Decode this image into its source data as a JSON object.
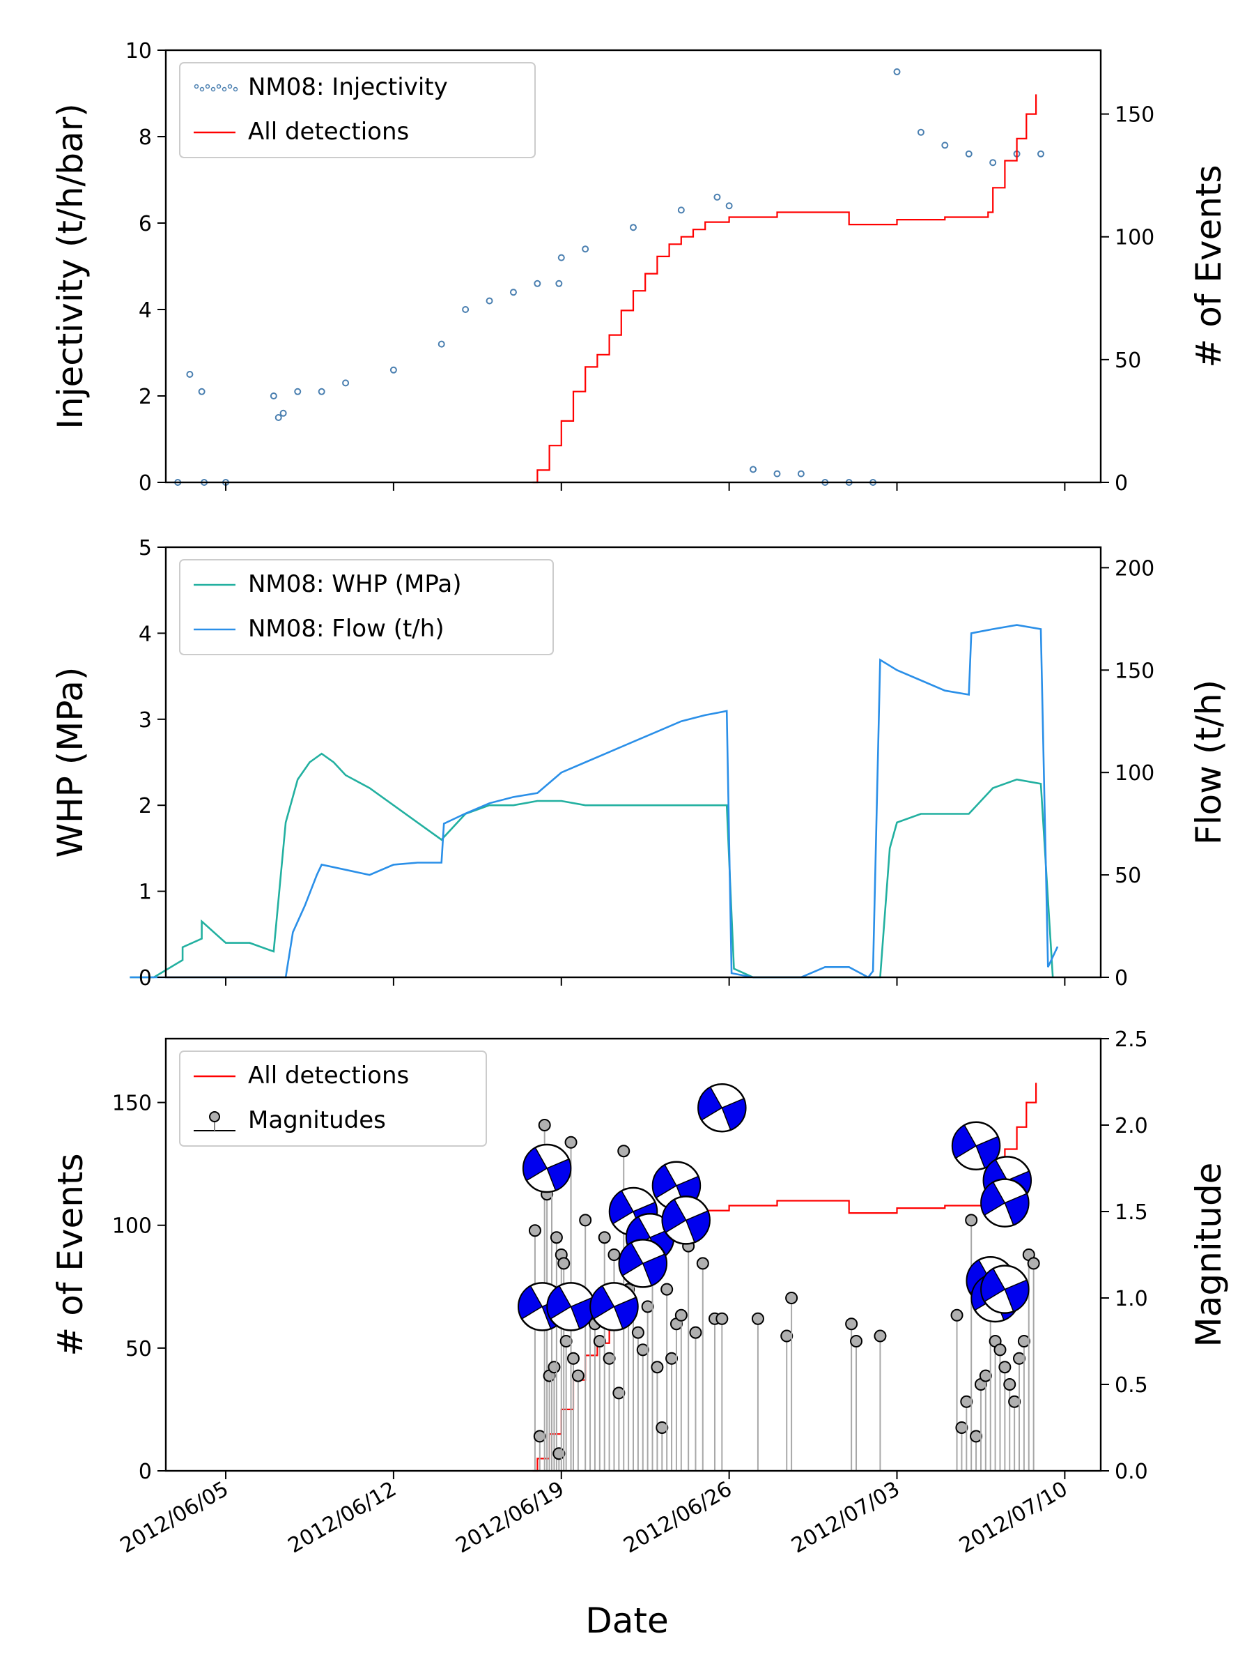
{
  "figure": {
    "xlabel": "Date",
    "x_ticks": [
      "2012/06/05",
      "2012/06/12",
      "2012/06/19",
      "2012/06/26",
      "2012/07/03",
      "2012/07/10"
    ]
  },
  "chart_data": [
    {
      "type": "scatter",
      "panel": "top",
      "ylabel_left": "Injectivity (t/h/bar)",
      "ylabel_right": "# of Events",
      "ylim_left": [
        0,
        10
      ],
      "ylim_right": [
        0,
        176
      ],
      "y_ticks_left": [
        "0",
        "2",
        "4",
        "6",
        "8",
        "10"
      ],
      "y_ticks_right": [
        "0",
        "50",
        "100",
        "150"
      ],
      "legend": {
        "placement": "top-left",
        "entries": [
          "NM08: Injectivity",
          "All detections"
        ]
      },
      "colors": {
        "injectivity": "#4a7fb0",
        "detections": "#ff0000"
      },
      "series": [
        {
          "name": "NM08: Injectivity",
          "axis": "left",
          "marker": "small dots",
          "x": [
            "2012/06/03",
            "2012/06/03.5",
            "2012/06/04",
            "2012/06/04.1",
            "2012/06/05",
            "2012/06/07",
            "2012/06/07.2",
            "2012/06/07.4",
            "2012/06/08",
            "2012/06/09",
            "2012/06/10",
            "2012/06/12",
            "2012/06/14",
            "2012/06/15",
            "2012/06/16",
            "2012/06/17",
            "2012/06/18",
            "2012/06/18.9",
            "2012/06/19",
            "2012/06/20",
            "2012/06/22",
            "2012/06/24",
            "2012/06/25.5",
            "2012/06/26",
            "2012/06/27",
            "2012/06/28",
            "2012/06/29",
            "2012/06/30",
            "2012/07/01",
            "2012/07/02",
            "2012/07/03",
            "2012/07/04",
            "2012/07/05",
            "2012/07/06",
            "2012/07/07",
            "2012/07/08",
            "2012/07/09"
          ],
          "y": [
            0,
            2.5,
            2.1,
            0,
            0,
            2.0,
            1.5,
            1.6,
            2.1,
            2.1,
            2.3,
            2.6,
            3.2,
            4.0,
            4.2,
            4.4,
            4.6,
            4.6,
            5.2,
            5.4,
            5.9,
            6.3,
            6.6,
            6.4,
            0.3,
            0.2,
            0.2,
            0,
            0,
            0,
            9.5,
            8.1,
            7.8,
            7.6,
            7.4,
            7.6,
            7.6
          ]
        },
        {
          "name": "All detections",
          "axis": "right",
          "marker": "step line",
          "x": [
            "2012/06/17.8",
            "2012/06/18",
            "2012/06/18.5",
            "2012/06/19",
            "2012/06/19.5",
            "2012/06/20",
            "2012/06/20.5",
            "2012/06/21",
            "2012/06/21.5",
            "2012/06/22",
            "2012/06/22.5",
            "2012/06/23",
            "2012/06/23.5",
            "2012/06/24",
            "2012/06/24.5",
            "2012/06/25",
            "2012/06/26",
            "2012/06/27",
            "2012/06/28",
            "2012/06/29",
            "2012/07/01",
            "2012/07/03",
            "2012/07/05",
            "2012/07/06.8",
            "2012/07/07",
            "2012/07/07.5",
            "2012/07/08",
            "2012/07/08.4",
            "2012/07/08.8"
          ],
          "y": [
            0,
            5,
            15,
            25,
            37,
            47,
            52,
            60,
            70,
            78,
            85,
            92,
            97,
            100,
            103,
            106,
            108,
            108,
            110,
            110,
            105,
            107,
            108,
            110,
            120,
            131,
            140,
            150,
            158
          ]
        }
      ]
    },
    {
      "type": "line",
      "panel": "middle",
      "ylabel_left": "WHP (MPa)",
      "ylabel_right": "Flow (t/h)",
      "ylim_left": [
        0,
        5
      ],
      "ylim_right": [
        0,
        210
      ],
      "y_ticks_left": [
        "0",
        "1",
        "2",
        "3",
        "4",
        "5"
      ],
      "y_ticks_right": [
        "0",
        "50",
        "100",
        "150",
        "200"
      ],
      "legend": {
        "placement": "top-left",
        "entries": [
          "NM08: WHP (MPa)",
          "NM08: Flow (t/h)"
        ]
      },
      "colors": {
        "whp": "#22b0a0",
        "flow": "#2a8fe8"
      },
      "series": [
        {
          "name": "NM08: WHP (MPa)",
          "axis": "left",
          "x": [
            "2012/06/01",
            "2012/06/02",
            "2012/06/03.2",
            "2012/06/03.2",
            "2012/06/04",
            "2012/06/04",
            "2012/06/05",
            "2012/06/05",
            "2012/06/06",
            "2012/06/07",
            "2012/06/07.5",
            "2012/06/08",
            "2012/06/08.5",
            "2012/06/09",
            "2012/06/09.5",
            "2012/06/10",
            "2012/06/11",
            "2012/06/12",
            "2012/06/13",
            "2012/06/14",
            "2012/06/15",
            "2012/06/16",
            "2012/06/17",
            "2012/06/18",
            "2012/06/19",
            "2012/06/20",
            "2012/06/21",
            "2012/06/22",
            "2012/06/23",
            "2012/06/24",
            "2012/06/25",
            "2012/06/25.9",
            "2012/06/26.2",
            "2012/06/27",
            "2012/06/30",
            "2012/07/02.3",
            "2012/07/02.7",
            "2012/07/03",
            "2012/07/04",
            "2012/07/05",
            "2012/07/06",
            "2012/07/07",
            "2012/07/08",
            "2012/07/09",
            "2012/07/09.5"
          ],
          "y": [
            0,
            0,
            0.2,
            0.35,
            0.45,
            0.65,
            0.4,
            0.4,
            0.4,
            0.3,
            1.8,
            2.3,
            2.5,
            2.6,
            2.5,
            2.35,
            2.2,
            2.0,
            1.8,
            1.6,
            1.9,
            2.0,
            2.0,
            2.05,
            2.05,
            2.0,
            2.0,
            2.0,
            2.0,
            2.0,
            2.0,
            2.0,
            0.1,
            0,
            0,
            0,
            1.5,
            1.8,
            1.9,
            1.9,
            1.9,
            2.2,
            2.3,
            2.25,
            0
          ]
        },
        {
          "name": "NM08: Flow (t/h)",
          "axis": "right",
          "x": [
            "2012/06/01",
            "2012/06/07.5",
            "2012/06/07.8",
            "2012/06/08.3",
            "2012/06/08.8",
            "2012/06/09",
            "2012/06/11",
            "2012/06/12",
            "2012/06/13",
            "2012/06/14",
            "2012/06/14.1",
            "2012/06/15",
            "2012/06/16",
            "2012/06/17",
            "2012/06/18",
            "2012/06/19",
            "2012/06/20",
            "2012/06/21",
            "2012/06/22",
            "2012/06/23",
            "2012/06/24",
            "2012/06/25",
            "2012/06/25.9",
            "2012/06/26.1",
            "2012/06/27",
            "2012/06/28",
            "2012/06/29",
            "2012/06/30",
            "2012/07/01",
            "2012/07/01.8",
            "2012/07/02",
            "2012/07/02.3",
            "2012/07/03",
            "2012/07/04",
            "2012/07/05",
            "2012/07/06",
            "2012/07/06.1",
            "2012/07/07",
            "2012/07/08",
            "2012/07/09",
            "2012/07/09.3",
            "2012/07/09.7"
          ],
          "y": [
            0,
            0,
            22,
            35,
            50,
            55,
            50,
            55,
            56,
            56,
            75,
            80,
            85,
            88,
            90,
            100,
            105,
            110,
            115,
            120,
            125,
            128,
            130,
            2,
            0,
            0,
            0,
            5,
            5,
            0,
            3,
            155,
            150,
            145,
            140,
            138,
            168,
            170,
            172,
            170,
            5,
            15
          ]
        }
      ]
    },
    {
      "type": "scatter",
      "panel": "bottom",
      "ylabel_left": "# of Events",
      "ylabel_right": "Magnitude",
      "ylim_left": [
        0,
        176
      ],
      "ylim_right": [
        0,
        2.5
      ],
      "y_ticks_left": [
        "0",
        "50",
        "100",
        "150"
      ],
      "y_ticks_right": [
        "0.0",
        "0.5",
        "1.0",
        "1.5",
        "2.0",
        "2.5"
      ],
      "legend": {
        "placement": "top-left",
        "entries": [
          "All detections",
          "Magnitudes"
        ]
      },
      "colors": {
        "detections": "#ff0000",
        "magnitude_marker": "#b0b0b0",
        "stem": "#a8a8a8",
        "beachball": "#0000ee"
      },
      "series": [
        {
          "name": "All detections",
          "axis": "left",
          "marker": "step line",
          "x": [
            "2012/06/17.8",
            "2012/06/18",
            "2012/06/18.5",
            "2012/06/19",
            "2012/06/19.5",
            "2012/06/20",
            "2012/06/20.5",
            "2012/06/21",
            "2012/06/21.5",
            "2012/06/22",
            "2012/06/22.5",
            "2012/06/23",
            "2012/06/23.5",
            "2012/06/24",
            "2012/06/24.5",
            "2012/06/25",
            "2012/06/26",
            "2012/06/27",
            "2012/06/28",
            "2012/06/29",
            "2012/07/01",
            "2012/07/03",
            "2012/07/05",
            "2012/07/06.8",
            "2012/07/07",
            "2012/07/07.5",
            "2012/07/08",
            "2012/07/08.4",
            "2012/07/08.8"
          ],
          "y": [
            0,
            5,
            15,
            25,
            37,
            47,
            52,
            60,
            70,
            78,
            85,
            92,
            97,
            100,
            103,
            106,
            108,
            108,
            110,
            110,
            105,
            107,
            108,
            110,
            120,
            131,
            140,
            150,
            158
          ]
        },
        {
          "name": "Magnitudes",
          "axis": "right",
          "marker": "stem with circle",
          "x": [
            "2012/06/17.9",
            "2012/06/18.1",
            "2012/06/18.3",
            "2012/06/18.4",
            "2012/06/18.5",
            "2012/06/18.6",
            "2012/06/18.7",
            "2012/06/18.8",
            "2012/06/18.9",
            "2012/06/19",
            "2012/06/19.1",
            "2012/06/19.2",
            "2012/06/19.4",
            "2012/06/19.5",
            "2012/06/19.7",
            "2012/06/20",
            "2012/06/20.2",
            "2012/06/20.4",
            "2012/06/20.6",
            "2012/06/20.8",
            "2012/06/21",
            "2012/06/21.2",
            "2012/06/21.4",
            "2012/06/21.6",
            "2012/06/21.8",
            "2012/06/22",
            "2012/06/22.2",
            "2012/06/22.4",
            "2012/06/22.6",
            "2012/06/22.8",
            "2012/06/23",
            "2012/06/23.2",
            "2012/06/23.4",
            "2012/06/23.6",
            "2012/06/23.8",
            "2012/06/24",
            "2012/06/24.3",
            "2012/06/24.6",
            "2012/06/24.9",
            "2012/06/25.4",
            "2012/06/25.7",
            "2012/06/27.2",
            "2012/06/28.4",
            "2012/06/28.6",
            "2012/07/01.1",
            "2012/07/01.3",
            "2012/07/02.3",
            "2012/07/05.5",
            "2012/07/05.7",
            "2012/07/05.9",
            "2012/07/06.1",
            "2012/07/06.3",
            "2012/07/06.5",
            "2012/07/06.7",
            "2012/07/06.9",
            "2012/07/07.1",
            "2012/07/07.3",
            "2012/07/07.5",
            "2012/07/07.7",
            "2012/07/07.9",
            "2012/07/08.1",
            "2012/07/08.3",
            "2012/07/08.5",
            "2012/07/08.7"
          ],
          "y": [
            1.39,
            0.2,
            2.0,
            1.6,
            0.55,
            1.7,
            0.6,
            1.35,
            0.1,
            1.25,
            1.2,
            0.75,
            1.9,
            0.65,
            0.55,
            1.45,
            0.95,
            0.85,
            0.75,
            1.35,
            0.65,
            1.25,
            0.45,
            1.85,
            1.05,
            1.3,
            0.8,
            0.7,
            0.95,
            1.4,
            0.6,
            0.25,
            1.05,
            0.65,
            0.85,
            0.9,
            1.3,
            0.8,
            1.2,
            0.88,
            0.88,
            0.88,
            0.78,
            1.0,
            0.85,
            0.75,
            0.78,
            0.9,
            0.25,
            0.4,
            1.45,
            0.2,
            0.5,
            0.55,
            1.1,
            0.75,
            0.7,
            0.6,
            0.5,
            0.4,
            0.65,
            0.75,
            1.25,
            1.2
          ]
        }
      ],
      "focal_mechanisms": [
        {
          "x": "2012/06/18.4",
          "magnitude": 1.75
        },
        {
          "x": "2012/06/18.2",
          "magnitude": 0.95
        },
        {
          "x": "2012/06/19.4",
          "magnitude": 0.95
        },
        {
          "x": "2012/06/21.2",
          "magnitude": 0.95
        },
        {
          "x": "2012/06/22.0",
          "magnitude": 1.5
        },
        {
          "x": "2012/06/22.7",
          "magnitude": 1.35
        },
        {
          "x": "2012/06/22.4",
          "magnitude": 1.2
        },
        {
          "x": "2012/06/23.8",
          "magnitude": 1.65
        },
        {
          "x": "2012/06/24.2",
          "magnitude": 1.45
        },
        {
          "x": "2012/06/25.7",
          "magnitude": 2.1
        },
        {
          "x": "2012/07/06.3",
          "magnitude": 1.88
        },
        {
          "x": "2012/07/07.6",
          "magnitude": 1.68
        },
        {
          "x": "2012/07/07.5",
          "magnitude": 1.55
        },
        {
          "x": "2012/07/06.9",
          "magnitude": 1.1
        },
        {
          "x": "2012/07/07.1",
          "magnitude": 1.0
        },
        {
          "x": "2012/07/07.5",
          "magnitude": 1.05
        }
      ]
    }
  ]
}
